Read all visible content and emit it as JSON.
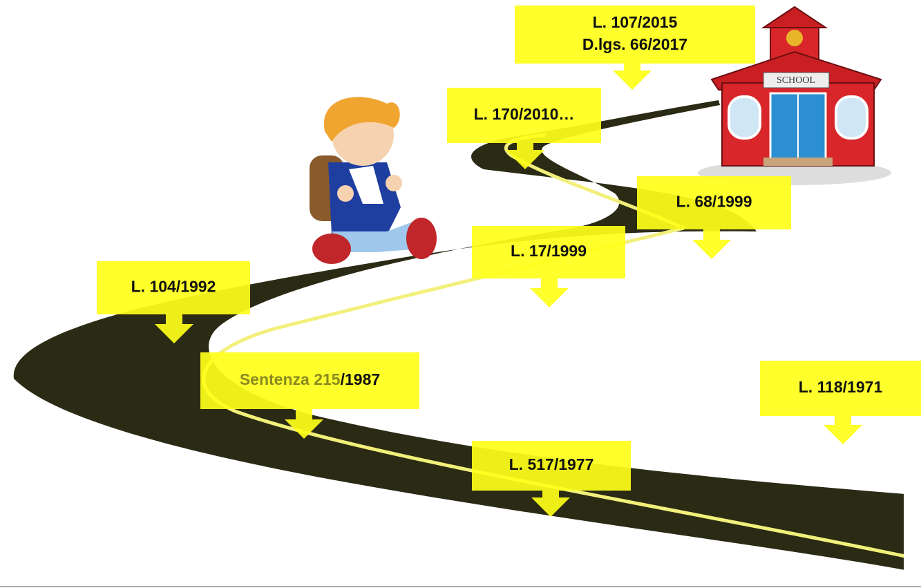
{
  "callouts": [
    {
      "lines": [
        "L. 107/2015",
        "D.lgs. 66/2017"
      ]
    },
    {
      "lines": [
        "L. 170/2010…"
      ]
    },
    {
      "lines": [
        "L. 68/1999"
      ]
    },
    {
      "lines": [
        "L. 17/1999"
      ]
    },
    {
      "lines": [
        "L. 104/1992"
      ]
    },
    {
      "parts": [
        "Sentenza 215",
        "/1987"
      ]
    },
    {
      "lines": [
        "L. 118/1971"
      ]
    },
    {
      "lines": [
        "L. 517/1977"
      ]
    }
  ],
  "school": {
    "sign": "SCHOOL"
  }
}
